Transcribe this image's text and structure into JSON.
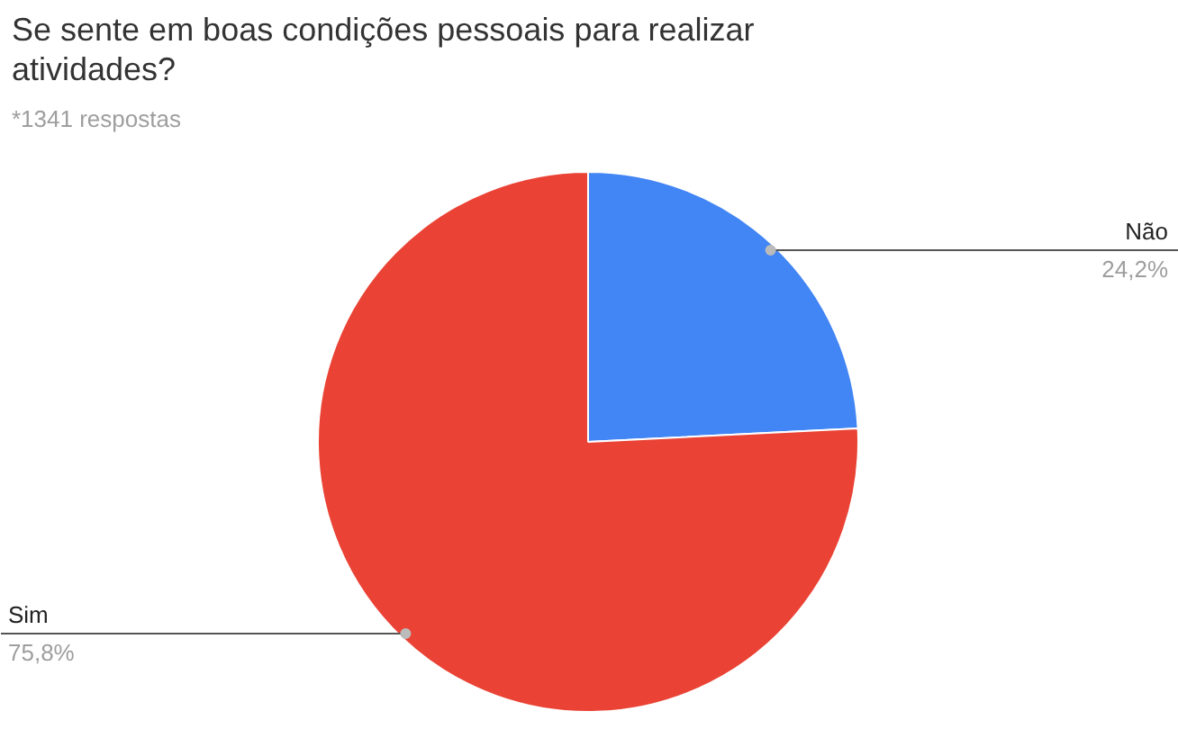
{
  "chart_data": {
    "type": "pie",
    "title": "Se sente em boas condições pessoais para realizar atividades?",
    "annotations": [
      "*1341 respostas"
    ],
    "categories": [
      "Não",
      "Sim"
    ],
    "values": [
      24.2,
      75.8
    ],
    "colors": [
      "#4285f4",
      "#ea4335"
    ],
    "value_labels": [
      "24,2%",
      "75,8%"
    ]
  }
}
